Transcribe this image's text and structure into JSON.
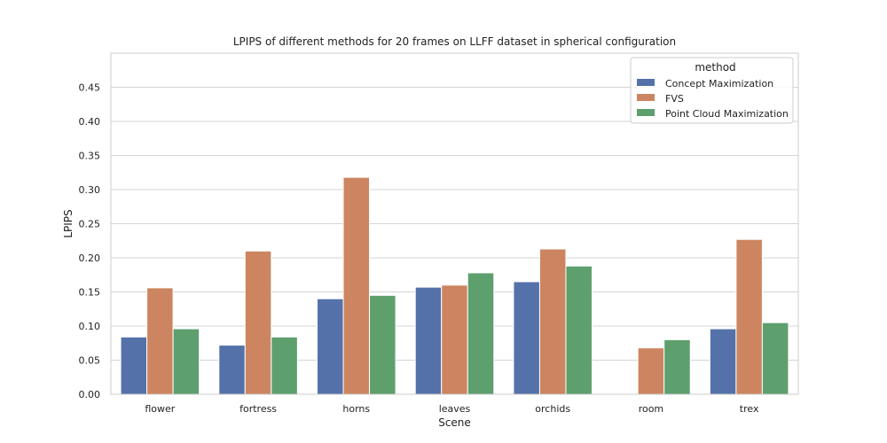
{
  "chart_data": {
    "type": "bar",
    "title": "LPIPS of different methods for 20 frames on LLFF dataset in spherical configuration",
    "xlabel": "Scene",
    "ylabel": "LPIPS",
    "ylim": [
      0,
      0.5
    ],
    "yticks": [
      "0.00",
      "0.05",
      "0.10",
      "0.15",
      "0.20",
      "0.25",
      "0.30",
      "0.35",
      "0.40",
      "0.45"
    ],
    "categories": [
      "flower",
      "fortress",
      "horns",
      "leaves",
      "orchids",
      "room",
      "trex"
    ],
    "grid": true,
    "legend": {
      "title": "method",
      "placement": "top-right"
    },
    "series": [
      {
        "name": "Concept Maximization",
        "color": "#5471a9",
        "values": [
          0.084,
          0.072,
          0.14,
          0.157,
          0.165,
          null,
          0.096
        ]
      },
      {
        "name": "FVS",
        "color": "#cc8560",
        "values": [
          0.156,
          0.21,
          0.318,
          0.16,
          0.213,
          0.068,
          0.227
        ]
      },
      {
        "name": "Point Cloud Maximization",
        "color": "#5e9f6e",
        "values": [
          0.096,
          0.084,
          0.145,
          0.178,
          0.188,
          0.08,
          0.105
        ]
      }
    ]
  }
}
